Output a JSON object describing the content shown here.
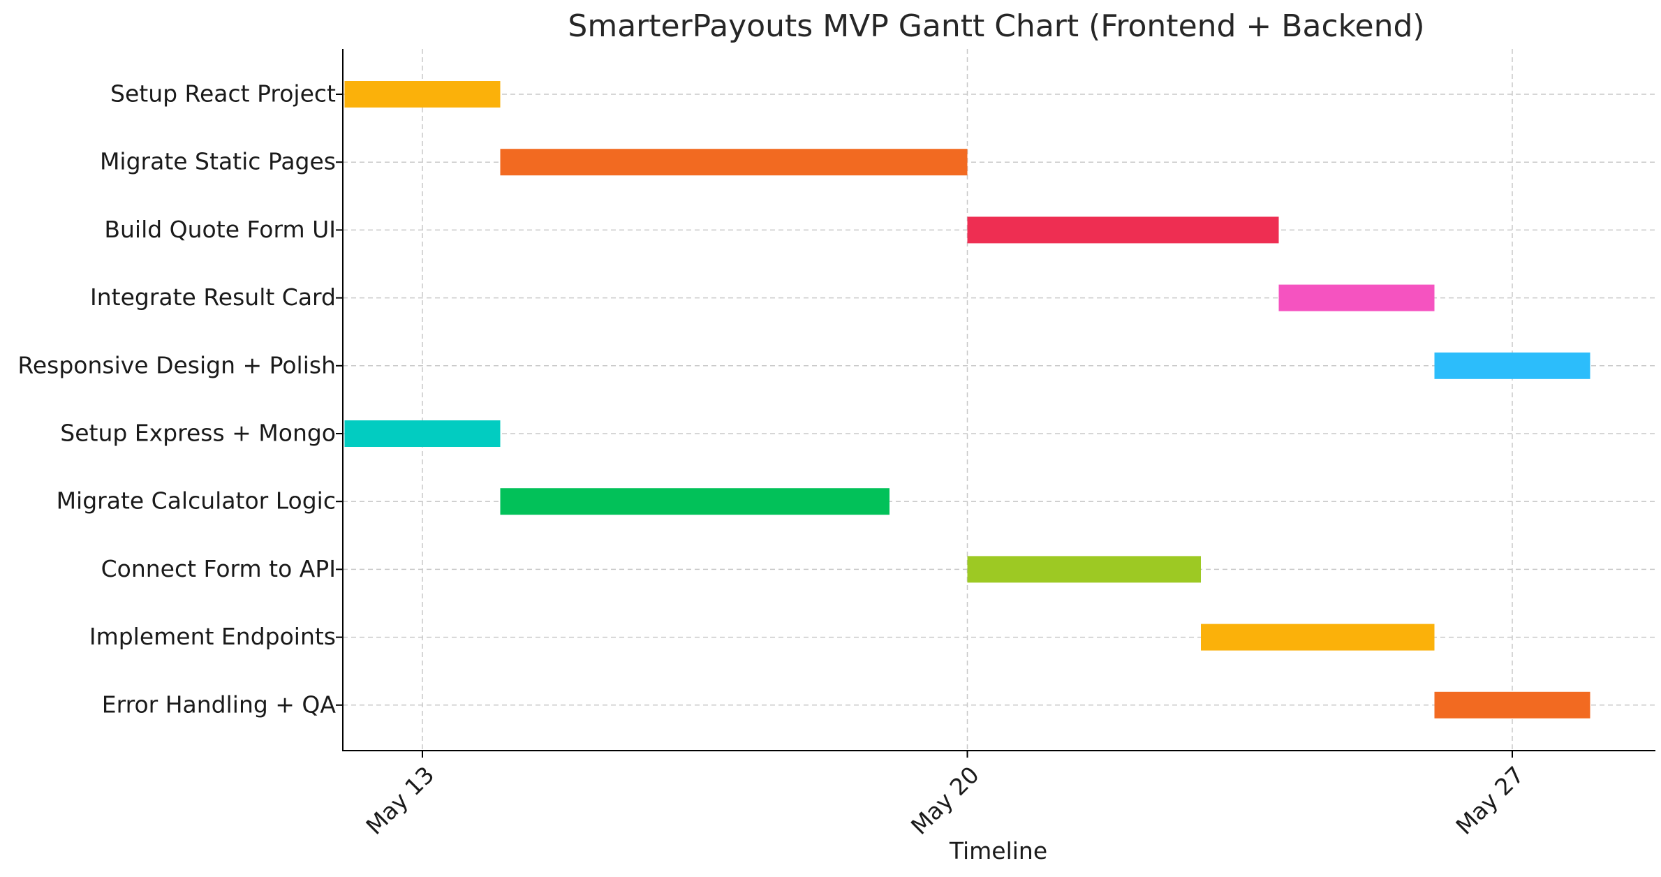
{
  "chart_data": {
    "type": "gantt",
    "title": "SmarterPayouts MVP Gantt Chart (Frontend + Backend)",
    "xlabel": "Timeline",
    "ylabel": "",
    "x_axis": {
      "type": "date",
      "range": [
        "2024-05-12",
        "2024-05-29"
      ],
      "ticks": [
        {
          "date": "2024-05-13",
          "label": "May 13"
        },
        {
          "date": "2024-05-20",
          "label": "May 20"
        },
        {
          "date": "2024-05-27",
          "label": "May 27"
        }
      ]
    },
    "grid": true,
    "tasks": [
      {
        "name": "Setup React Project",
        "start": "2024-05-12",
        "end": "2024-05-14",
        "color": "#FBB10A"
      },
      {
        "name": "Migrate Static Pages",
        "start": "2024-05-14",
        "end": "2024-05-20",
        "color": "#F26A21"
      },
      {
        "name": "Build Quote Form UI",
        "start": "2024-05-20",
        "end": "2024-05-24",
        "color": "#EE2E52"
      },
      {
        "name": "Integrate Result Card",
        "start": "2024-05-24",
        "end": "2024-05-26",
        "color": "#F553C0"
      },
      {
        "name": "Responsive Design + Polish",
        "start": "2024-05-26",
        "end": "2024-05-28",
        "color": "#2CBDFB"
      },
      {
        "name": "Setup Express + Mongo",
        "start": "2024-05-12",
        "end": "2024-05-14",
        "color": "#02CCC1"
      },
      {
        "name": "Migrate Calculator Logic",
        "start": "2024-05-14",
        "end": "2024-05-19",
        "color": "#02C159"
      },
      {
        "name": "Connect Form to API",
        "start": "2024-05-20",
        "end": "2024-05-23",
        "color": "#9DC923"
      },
      {
        "name": "Implement Endpoints",
        "start": "2024-05-23",
        "end": "2024-05-26",
        "color": "#FBB10A"
      },
      {
        "name": "Error Handling + QA",
        "start": "2024-05-26",
        "end": "2024-05-28",
        "color": "#F26A21"
      }
    ]
  }
}
